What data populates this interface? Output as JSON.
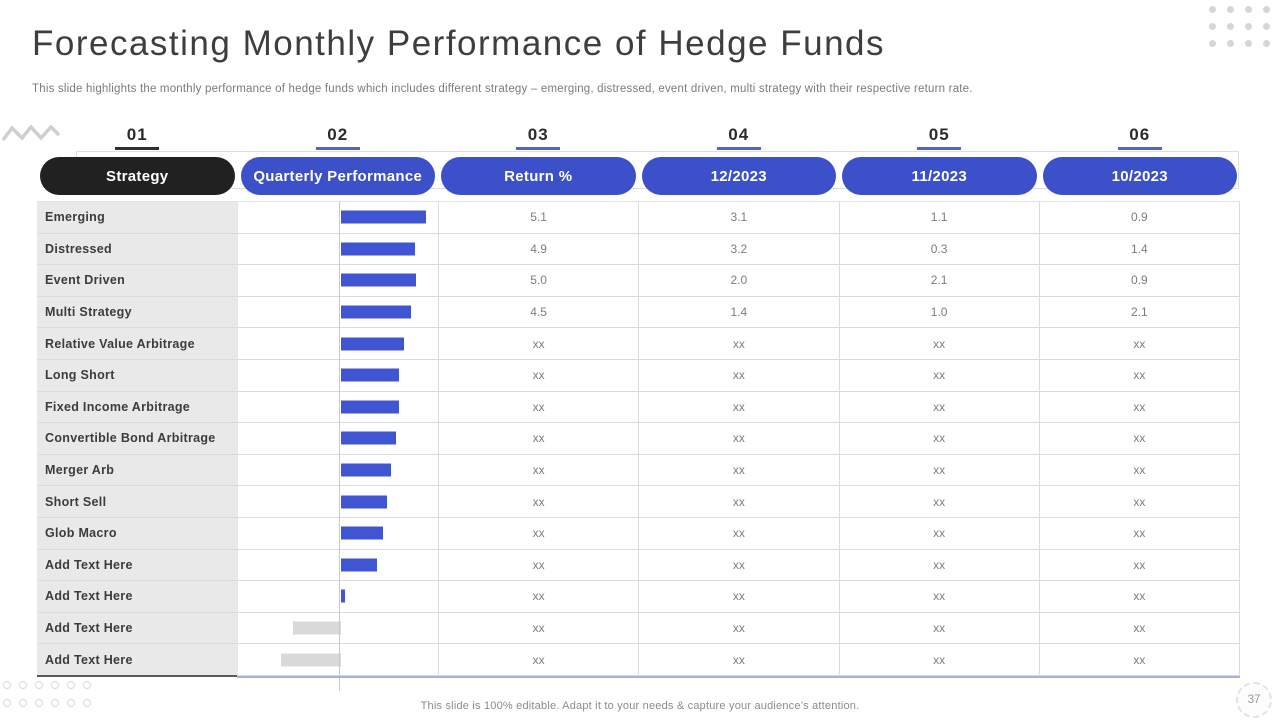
{
  "slide": {
    "title": "Forecasting Monthly Performance of Hedge Funds",
    "subtitle": "This slide highlights the monthly performance of hedge funds which includes different strategy – emerging, distressed, event driven,  multi strategy with their respective return rate.",
    "footer": "This slide is 100% editable. Adapt it to your needs & capture your audience’s attention.",
    "page_number": "37"
  },
  "colors": {
    "accent_blue": "#3b50c9",
    "pill_dark": "#212121",
    "bar_positive": "#3f55d2",
    "bar_negative": "#d9d9d9",
    "step_underline_dark": "#2f2f2f",
    "step_underline_blue": "#5165c4",
    "label_column_bg": "#e9e9e9",
    "grid_line": "#dcdcdc",
    "axis_bottom_blue": "#a7b2dc",
    "axis_bottom_dark": "#5a5a5a"
  },
  "table": {
    "step_numbers": [
      "01",
      "02",
      "03",
      "04",
      "05",
      "06"
    ],
    "columns": [
      "Strategy",
      "Quarterly Performance",
      "Return %",
      "12/2023",
      "11/2023",
      "10/2023"
    ],
    "rows": [
      {
        "strategy": "Emerging",
        "bar": 85,
        "return_pct": "5.1",
        "dec_2023": "3.1",
        "nov_2023": "1.1",
        "oct_2023": "0.9"
      },
      {
        "strategy": "Distressed",
        "bar": 74,
        "return_pct": "4.9",
        "dec_2023": "3.2",
        "nov_2023": "0.3",
        "oct_2023": "1.4"
      },
      {
        "strategy": "Event Driven",
        "bar": 75,
        "return_pct": "5.0",
        "dec_2023": "2.0",
        "nov_2023": "2.1",
        "oct_2023": "0.9"
      },
      {
        "strategy": "Multi Strategy",
        "bar": 70,
        "return_pct": "4.5",
        "dec_2023": "1.4",
        "nov_2023": "1.0",
        "oct_2023": "2.1"
      },
      {
        "strategy": "Relative Value Arbitrage",
        "bar": 63,
        "return_pct": "xx",
        "dec_2023": "xx",
        "nov_2023": "xx",
        "oct_2023": "xx"
      },
      {
        "strategy": "Long Short",
        "bar": 58,
        "return_pct": "xx",
        "dec_2023": "xx",
        "nov_2023": "xx",
        "oct_2023": "xx"
      },
      {
        "strategy": "Fixed Income  Arbitrage",
        "bar": 58,
        "return_pct": "xx",
        "dec_2023": "xx",
        "nov_2023": "xx",
        "oct_2023": "xx"
      },
      {
        "strategy": "Convertible Bond Arbitrage",
        "bar": 55,
        "return_pct": "xx",
        "dec_2023": "xx",
        "nov_2023": "xx",
        "oct_2023": "xx"
      },
      {
        "strategy": "Merger Arb",
        "bar": 50,
        "return_pct": "xx",
        "dec_2023": "xx",
        "nov_2023": "xx",
        "oct_2023": "xx"
      },
      {
        "strategy": "Short Sell",
        "bar": 46,
        "return_pct": "xx",
        "dec_2023": "xx",
        "nov_2023": "xx",
        "oct_2023": "xx"
      },
      {
        "strategy": "Glob Macro",
        "bar": 42,
        "return_pct": "xx",
        "dec_2023": "xx",
        "nov_2023": "xx",
        "oct_2023": "xx"
      },
      {
        "strategy": "Add Text Here",
        "bar": 36,
        "return_pct": "xx",
        "dec_2023": "xx",
        "nov_2023": "xx",
        "oct_2023": "xx"
      },
      {
        "strategy": "Add Text Here",
        "bar": 4,
        "return_pct": "xx",
        "dec_2023": "xx",
        "nov_2023": "xx",
        "oct_2023": "xx"
      },
      {
        "strategy": "Add Text Here",
        "bar": -48,
        "return_pct": "xx",
        "dec_2023": "xx",
        "nov_2023": "xx",
        "oct_2023": "xx"
      },
      {
        "strategy": "Add Text Here",
        "bar": -60,
        "return_pct": "xx",
        "dec_2023": "xx",
        "nov_2023": "xx",
        "oct_2023": "xx"
      }
    ]
  },
  "chart_data": {
    "type": "bar",
    "orientation": "horizontal",
    "title": "Quarterly Performance",
    "categories": [
      "Emerging",
      "Distressed",
      "Event Driven",
      "Multi Strategy",
      "Relative Value Arbitrage",
      "Long Short",
      "Fixed Income  Arbitrage",
      "Convertible Bond Arbitrage",
      "Merger Arb",
      "Short Sell",
      "Glob Macro",
      "Add Text Here",
      "Add Text Here",
      "Add Text Here",
      "Add Text Here"
    ],
    "values": [
      85,
      74,
      75,
      70,
      63,
      58,
      58,
      55,
      50,
      46,
      42,
      36,
      4,
      -48,
      -60
    ],
    "value_units": "relative bar length in px (axis unlabeled in source)",
    "positive_bar_color": "#3f55d2",
    "negative_bar_color": "#d9d9d9",
    "baseline": 0,
    "grid": false,
    "legend": false
  }
}
